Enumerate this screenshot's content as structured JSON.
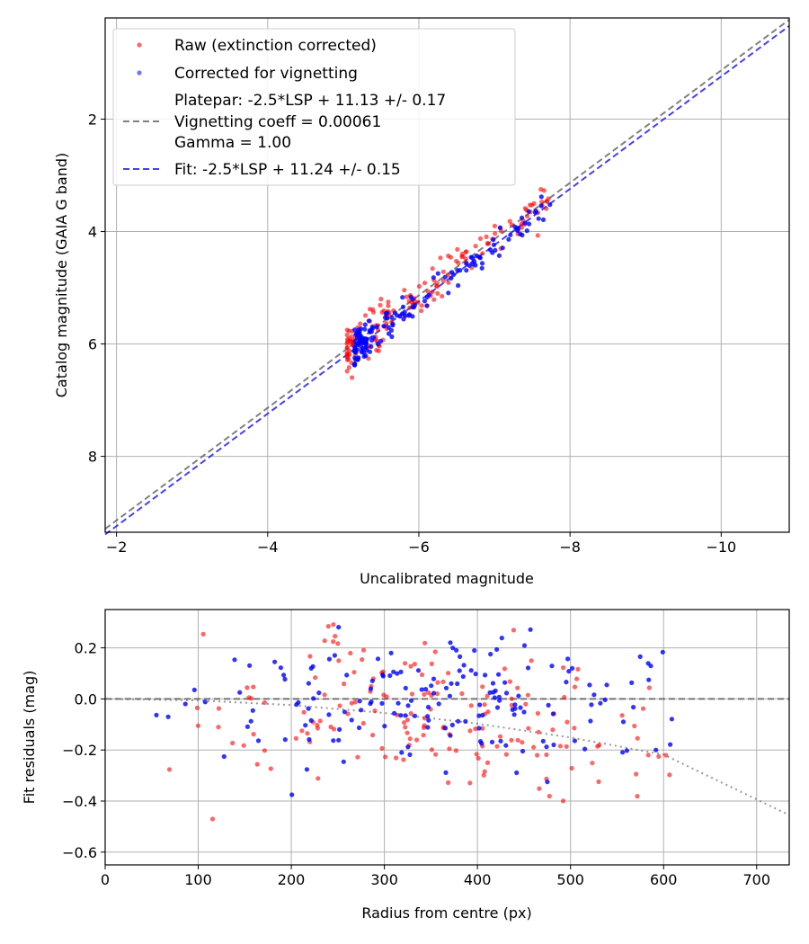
{
  "chart_data": [
    {
      "type": "scatter",
      "xlabel": "Uncalibrated magnitude",
      "ylabel": "Catalog magnitude (GAIA G band)",
      "xlim": [
        -1.85,
        -10.9
      ],
      "ylim": [
        9.35,
        0.2
      ],
      "x_ticks": [
        -2,
        -4,
        -6,
        -8,
        -10
      ],
      "x_tick_labels": [
        "−2",
        "−4",
        "−6",
        "−8",
        "−10"
      ],
      "y_ticks": [
        2,
        4,
        6,
        8
      ],
      "y_tick_labels": [
        "2",
        "4",
        "6",
        "8"
      ],
      "grid": true,
      "legend_position": "upper-left",
      "legend": [
        {
          "label": "Raw (extinction corrected)",
          "kind": "marker",
          "color": "#ff0000"
        },
        {
          "label": "Corrected for vignetting",
          "kind": "marker",
          "color": "#0000ff"
        },
        {
          "label": [
            "Platepar: -2.5*LSP + 11.13 +/- 0.17",
            "Vignetting coeff = 0.00061",
            "Gamma = 1.00"
          ],
          "kind": "dashed-line",
          "color": "#555555"
        },
        {
          "label": "Fit: -2.5*LSP + 11.24 +/- 0.15",
          "kind": "dashed-line",
          "color": "#0000ff"
        }
      ],
      "lines": [
        {
          "name": "platepar",
          "x": [
            -1.85,
            -10.9
          ],
          "y": [
            9.29,
            0.23
          ],
          "color": "#555555",
          "style": "dashed"
        },
        {
          "name": "fit",
          "x": [
            -1.85,
            -10.9
          ],
          "y": [
            9.39,
            0.34
          ],
          "color": "#0000ff",
          "style": "dashed"
        }
      ],
      "series": [
        {
          "name": "Raw (extinction corrected)",
          "color": "#ff0000",
          "seed": 7,
          "n": 160,
          "x_range": [
            -5.05,
            -7.72
          ],
          "slope": 1.0,
          "intercept": 11.13,
          "spread": 0.22
        },
        {
          "name": "Corrected for vignetting",
          "color": "#0000ff",
          "seed": 13,
          "n": 160,
          "x_range": [
            -5.15,
            -7.75
          ],
          "slope": 1.0,
          "intercept": 11.24,
          "spread": 0.16
        }
      ]
    },
    {
      "type": "scatter",
      "xlabel": "Radius from centre (px)",
      "ylabel": "Fit residuals (mag)",
      "xlim": [
        0,
        735
      ],
      "ylim": [
        -0.65,
        0.35
      ],
      "x_ticks": [
        0,
        100,
        200,
        300,
        400,
        500,
        600,
        700
      ],
      "x_tick_labels": [
        "0",
        "100",
        "200",
        "300",
        "400",
        "500",
        "600",
        "700"
      ],
      "y_ticks": [
        0.2,
        0.0,
        -0.2,
        -0.4,
        -0.6
      ],
      "y_tick_labels": [
        "0.2",
        "0.0",
        "−0.2",
        "−0.4",
        "−0.6"
      ],
      "grid": true,
      "lines": [
        {
          "name": "zero",
          "x": [
            0,
            735
          ],
          "y": [
            0,
            0
          ],
          "color": "#555555",
          "style": "dashed"
        },
        {
          "name": "vignetting-model",
          "x": [
            0,
            100,
            200,
            300,
            400,
            500,
            600,
            735
          ],
          "y": [
            0,
            -0.006,
            -0.024,
            -0.055,
            -0.097,
            -0.151,
            -0.218,
            -0.455
          ],
          "color": "#777777",
          "style": "dotted"
        }
      ],
      "series": [
        {
          "name": "Raw residuals",
          "color": "#ff0000",
          "seed": 21,
          "n": 170,
          "r_range": [
            20,
            650
          ],
          "spread": 0.15
        },
        {
          "name": "Corrected residuals",
          "color": "#0000ff",
          "seed": 42,
          "n": 170,
          "r_range": [
            20,
            650
          ],
          "spread": 0.14
        }
      ]
    }
  ]
}
